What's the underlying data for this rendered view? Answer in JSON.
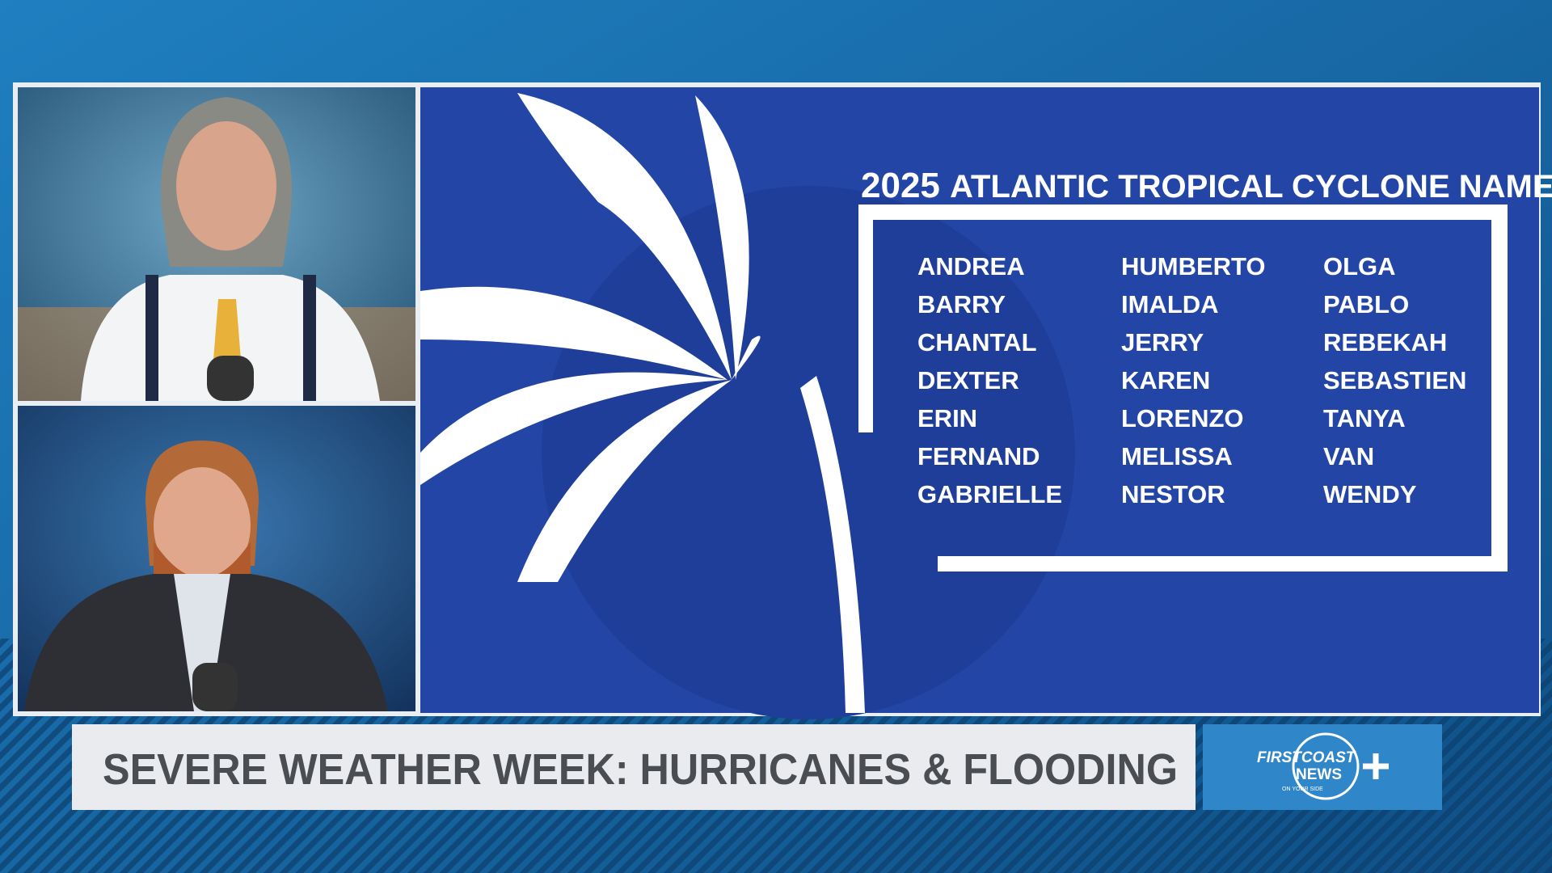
{
  "graphic": {
    "year": "2025",
    "title": "ATLANTIC TROPICAL CYCLONE NAMES",
    "names": [
      [
        "ANDREA",
        "BARRY",
        "CHANTAL",
        "DEXTER",
        "ERIN",
        "FERNAND",
        "GABRIELLE"
      ],
      [
        "HUMBERTO",
        "IMALDA",
        "JERRY",
        "KAREN",
        "LORENZO",
        "MELISSA",
        "NESTOR"
      ],
      [
        "OLGA",
        "PABLO",
        "REBEKAH",
        "SEBASTIEN",
        "TANYA",
        "VAN",
        "WENDY"
      ]
    ]
  },
  "banner": {
    "text": "SEVERE WEATHER WEEK: HURRICANES & FLOODING"
  },
  "logo": {
    "line1": "FIRSTCOAST",
    "line2": "NEWS",
    "tagline": "ON YOUR SIDE"
  }
}
